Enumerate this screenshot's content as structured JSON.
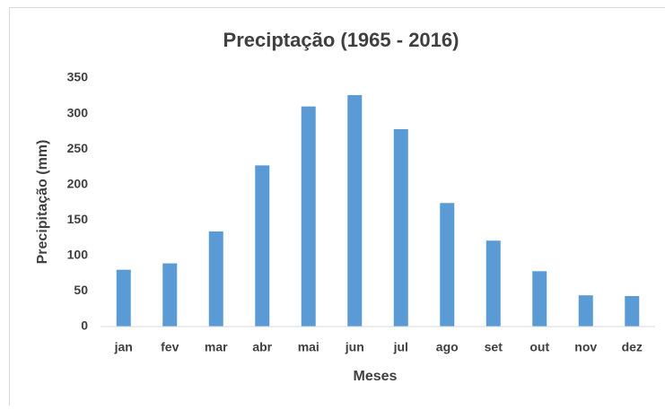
{
  "chart_data": {
    "type": "bar",
    "title": "Preciptação (1965 - 2016)",
    "xlabel": "Meses",
    "ylabel": "Precipitação (mm)",
    "categories": [
      "jan",
      "fev",
      "mar",
      "abr",
      "mai",
      "jun",
      "jul",
      "ago",
      "set",
      "out",
      "nov",
      "dez"
    ],
    "values": [
      80,
      89,
      134,
      227,
      310,
      326,
      278,
      174,
      121,
      78,
      44,
      43
    ],
    "color": "#5b9bd5",
    "ylim": [
      0,
      350
    ],
    "yticks": [
      0,
      50,
      100,
      150,
      200,
      250,
      300,
      350
    ],
    "grid": false
  }
}
